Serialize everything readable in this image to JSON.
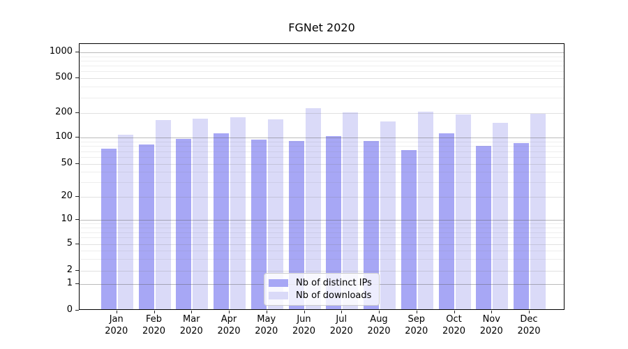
{
  "chart_data": {
    "type": "bar",
    "title": "FGNet 2020",
    "categories": [
      "Jan",
      "Feb",
      "Mar",
      "Apr",
      "May",
      "Jun",
      "Jul",
      "Aug",
      "Sep",
      "Oct",
      "Nov",
      "Dec"
    ],
    "category_year": "2020",
    "series": [
      {
        "name": "Nb of distinct IPs",
        "color": "#a7a7f5",
        "values": [
          72,
          80,
          93,
          108,
          91,
          88,
          100,
          88,
          69,
          109,
          77,
          83
        ]
      },
      {
        "name": "Nb of downloads",
        "color": "#dadaf8",
        "values": [
          105,
          158,
          164,
          170,
          161,
          221,
          198,
          152,
          200,
          185,
          146,
          190
        ]
      }
    ],
    "yscale": "symlog",
    "ylim": [
      0,
      1250
    ],
    "yticks": [
      0,
      1,
      2,
      5,
      10,
      20,
      50,
      100,
      200,
      500,
      1000
    ],
    "grid": true,
    "legend_position": "lower center"
  }
}
